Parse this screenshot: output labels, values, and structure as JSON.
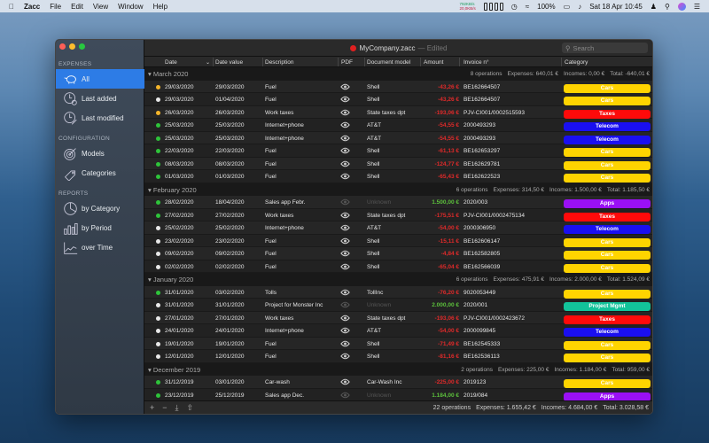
{
  "menubar": {
    "app": "Zacc",
    "items": [
      "File",
      "Edit",
      "View",
      "Window",
      "Help"
    ],
    "net_up": "792KB/s",
    "net_down": "20,0KB/s",
    "battery": "100%",
    "clock": "Sat 18 Apr  10:45"
  },
  "window": {
    "doc_name": "MyCompany.zacc",
    "edited": "— Edited",
    "search_placeholder": "Search"
  },
  "sidebar": {
    "sections": [
      {
        "title": "EXPENSES",
        "items": [
          {
            "label": "All",
            "icon": "piggy-bank-icon",
            "active": true
          },
          {
            "label": "Last added",
            "icon": "clock-plus-icon"
          },
          {
            "label": "Last modified",
            "icon": "clock-edit-icon"
          }
        ]
      },
      {
        "title": "CONFIGURATION",
        "items": [
          {
            "label": "Models",
            "icon": "target-icon"
          },
          {
            "label": "Categories",
            "icon": "tag-icon"
          }
        ]
      },
      {
        "title": "REPORTS",
        "items": [
          {
            "label": "by Category",
            "icon": "pie-chart-icon"
          },
          {
            "label": "by Period",
            "icon": "bar-chart-icon"
          },
          {
            "label": "over Time",
            "icon": "line-chart-icon"
          }
        ]
      }
    ]
  },
  "columns": [
    "Date",
    "Date value",
    "Description",
    "PDF",
    "Document model",
    "Amount",
    "Invoice n°",
    "Category"
  ],
  "category_colors": {
    "Cars": "#ffd400",
    "Taxes": "#ff0a0a",
    "Telecom": "#1a0ff0",
    "Apps": "#9a10f5",
    "Project Mgmt": "#12c39a"
  },
  "status_colors": {
    "orange": "#f5b52a",
    "white": "#e8e8e8",
    "green": "#2ec43a"
  },
  "groups": [
    {
      "title": "March 2020",
      "operations": "8 operations",
      "expenses": "Expenses: 640,01 €",
      "incomes": "Incomes: 0,00 €",
      "total": "Total: -640,01 €",
      "rows": [
        {
          "status": "orange",
          "date": "29/03/2020",
          "value_date": "29/03/2020",
          "description": "Fuel",
          "pdf": true,
          "model": "Shell",
          "amount": "-43,26 €",
          "invoice": "BE162664507",
          "category": "Cars"
        },
        {
          "status": "white",
          "date": "29/03/2020",
          "value_date": "01/04/2020",
          "description": "Fuel",
          "pdf": true,
          "model": "Shell",
          "amount": "-43,26 €",
          "invoice": "BE162664507",
          "category": "Cars"
        },
        {
          "status": "orange",
          "date": "26/03/2020",
          "value_date": "26/03/2020",
          "description": "Work taxes",
          "pdf": true,
          "model": "State taxes dpt",
          "amount": "-193,06 €",
          "invoice": "PJV-CI001/0002515593",
          "category": "Taxes"
        },
        {
          "status": "green",
          "date": "25/03/2020",
          "value_date": "25/03/2020",
          "description": "Internet+phone",
          "pdf": true,
          "model": "AT&T",
          "amount": "-54,55 €",
          "invoice": "2000493293",
          "category": "Telecom"
        },
        {
          "status": "green",
          "date": "25/03/2020",
          "value_date": "25/03/2020",
          "description": "Internet+phone",
          "pdf": true,
          "model": "AT&T",
          "amount": "-54,55 €",
          "invoice": "2000493293",
          "category": "Telecom"
        },
        {
          "status": "green",
          "date": "22/03/2020",
          "value_date": "22/03/2020",
          "description": "Fuel",
          "pdf": true,
          "model": "Shell",
          "amount": "-61,13 €",
          "invoice": "BE162653297",
          "category": "Cars"
        },
        {
          "status": "green",
          "date": "08/03/2020",
          "value_date": "08/03/2020",
          "description": "Fuel",
          "pdf": true,
          "model": "Shell",
          "amount": "-124,77 €",
          "invoice": "BE162629781",
          "category": "Cars"
        },
        {
          "status": "green",
          "date": "01/03/2020",
          "value_date": "01/03/2020",
          "description": "Fuel",
          "pdf": true,
          "model": "Shell",
          "amount": "-65,43 €",
          "invoice": "BE162622523",
          "category": "Cars"
        }
      ]
    },
    {
      "title": "February 2020",
      "operations": "6 operations",
      "expenses": "Expenses: 314,50 €",
      "incomes": "Incomes: 1.500,00 €",
      "total": "Total: 1.185,50 €",
      "rows": [
        {
          "status": "green",
          "date": "28/02/2020",
          "value_date": "18/04/2020",
          "description": "Sales app Febr.",
          "pdf": false,
          "model": "Unknown",
          "amount": "1.500,00 €",
          "invoice": "2020/003",
          "category": "Apps"
        },
        {
          "status": "green",
          "date": "27/02/2020",
          "value_date": "27/02/2020",
          "description": "Work taxes",
          "pdf": true,
          "model": "State taxes dpt",
          "amount": "-175,51 €",
          "invoice": "PJV-CI001/0002475134",
          "category": "Taxes"
        },
        {
          "status": "white",
          "date": "25/02/2020",
          "value_date": "25/02/2020",
          "description": "Internet+phone",
          "pdf": true,
          "model": "AT&T",
          "amount": "-54,00 €",
          "invoice": "2000306950",
          "category": "Telecom"
        },
        {
          "status": "white",
          "date": "23/02/2020",
          "value_date": "23/02/2020",
          "description": "Fuel",
          "pdf": true,
          "model": "Shell",
          "amount": "-15,11 €",
          "invoice": "BE162606147",
          "category": "Cars"
        },
        {
          "status": "white",
          "date": "09/02/2020",
          "value_date": "09/02/2020",
          "description": "Fuel",
          "pdf": true,
          "model": "Shell",
          "amount": "-4,84 €",
          "invoice": "BE162582805",
          "category": "Cars"
        },
        {
          "status": "white",
          "date": "02/02/2020",
          "value_date": "02/02/2020",
          "description": "Fuel",
          "pdf": true,
          "model": "Shell",
          "amount": "-65,04 €",
          "invoice": "BE162566039",
          "category": "Cars"
        }
      ]
    },
    {
      "title": "January 2020",
      "operations": "6 operations",
      "expenses": "Expenses: 475,91 €",
      "incomes": "Incomes: 2.000,00 €",
      "total": "Total: 1.524,09 €",
      "rows": [
        {
          "status": "green",
          "date": "31/01/2020",
          "value_date": "03/02/2020",
          "description": "Tolls",
          "pdf": true,
          "model": "TollInc",
          "amount": "-76,20 €",
          "invoice": "9020053449",
          "category": "Cars"
        },
        {
          "status": "white",
          "date": "31/01/2020",
          "value_date": "31/01/2020",
          "description": "Project for Monster Inc",
          "pdf": false,
          "model": "Unknown",
          "amount": "2.000,00 €",
          "invoice": "2020/001",
          "category": "Project Mgmt"
        },
        {
          "status": "white",
          "date": "27/01/2020",
          "value_date": "27/01/2020",
          "description": "Work taxes",
          "pdf": true,
          "model": "State taxes dpt",
          "amount": "-193,06 €",
          "invoice": "PJV-CI001/0002423672",
          "category": "Taxes"
        },
        {
          "status": "white",
          "date": "24/01/2020",
          "value_date": "24/01/2020",
          "description": "Internet+phone",
          "pdf": true,
          "model": "AT&T",
          "amount": "-54,00 €",
          "invoice": "2000099845",
          "category": "Telecom"
        },
        {
          "status": "white",
          "date": "19/01/2020",
          "value_date": "19/01/2020",
          "description": "Fuel",
          "pdf": true,
          "model": "Shell",
          "amount": "-71,49 €",
          "invoice": "BE162545333",
          "category": "Cars"
        },
        {
          "status": "white",
          "date": "12/01/2020",
          "value_date": "12/01/2020",
          "description": "Fuel",
          "pdf": true,
          "model": "Shell",
          "amount": "-81,16 €",
          "invoice": "BE162536113",
          "category": "Cars"
        }
      ]
    },
    {
      "title": "December 2019",
      "operations": "2 operations",
      "expenses": "Expenses: 225,00 €",
      "incomes": "Incomes: 1.184,00 €",
      "total": "Total: 959,00 €",
      "rows": [
        {
          "status": "green",
          "date": "31/12/2019",
          "value_date": "03/01/2020",
          "description": "Car-wash",
          "pdf": true,
          "model": "Car-Wash Inc",
          "amount": "-225,00 €",
          "invoice": "2019123",
          "category": "Cars"
        },
        {
          "status": "green",
          "date": "23/12/2019",
          "value_date": "25/12/2019",
          "description": "Sales app Dec.",
          "pdf": false,
          "model": "Unknown",
          "amount": "1.184,00 €",
          "invoice": "2019/084",
          "category": "Apps"
        }
      ]
    }
  ],
  "footer": {
    "operations": "22 operations",
    "expenses": "Expenses: 1.655,42 €",
    "incomes": "Incomes: 4.684,00 €",
    "total": "Total: 3.028,58 €"
  }
}
